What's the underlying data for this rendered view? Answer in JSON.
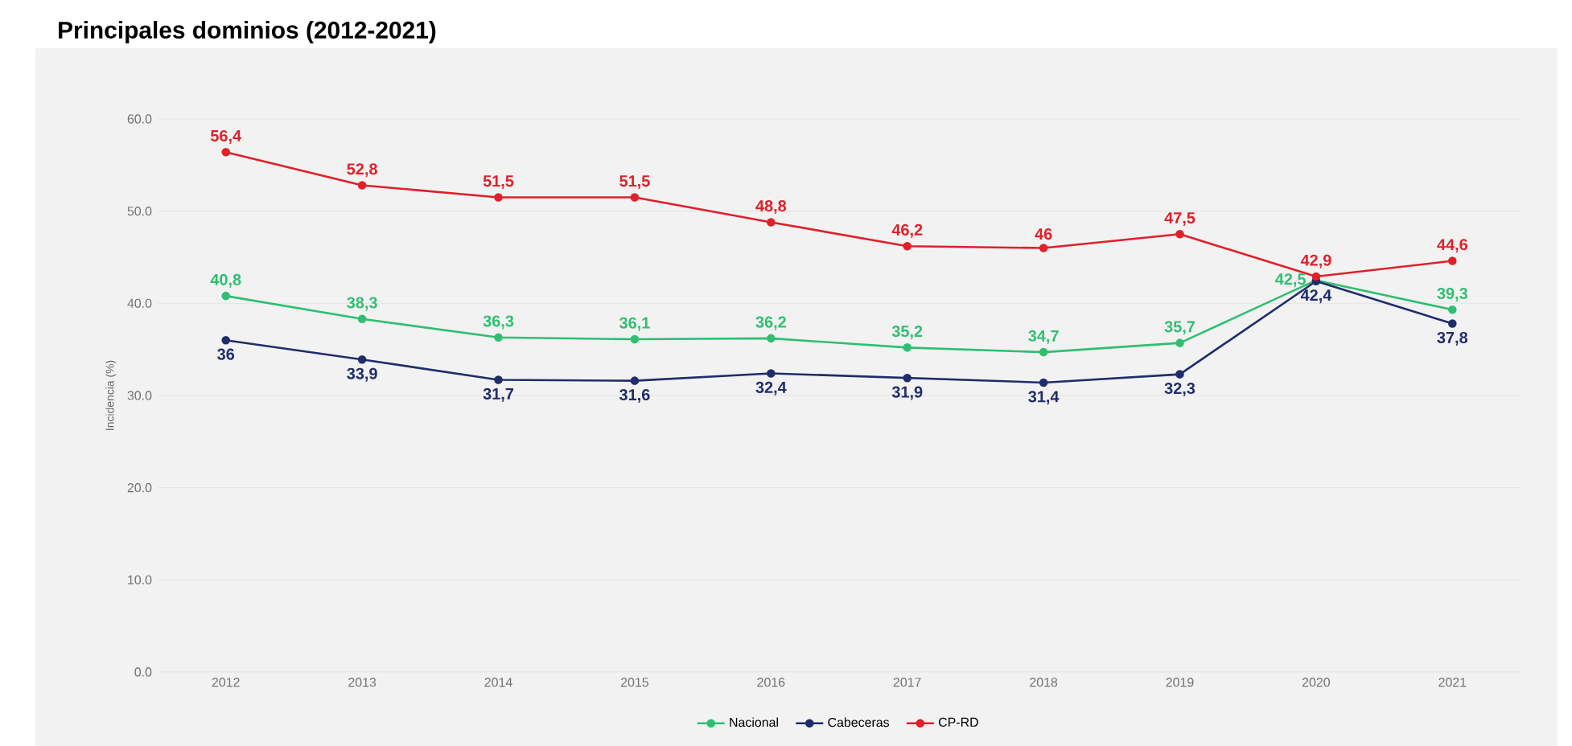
{
  "chart_data": {
    "type": "line",
    "title": "Principales dominios (2012-2021)",
    "ylabel": "Incidencia (%)",
    "categories": [
      "2012",
      "2013",
      "2014",
      "2015",
      "2016",
      "2017",
      "2018",
      "2019",
      "2020",
      "2021"
    ],
    "series": [
      {
        "name": "Nacional",
        "color": "#2fbf71",
        "values": [
          40.8,
          38.3,
          36.3,
          36.1,
          36.2,
          35.2,
          34.7,
          35.7,
          42.5,
          39.3
        ],
        "value_labels": [
          "40,8",
          "38,3",
          "36,3",
          "36,1",
          "36,2",
          "35,2",
          "34,7",
          "35,7",
          "42,5",
          "39,3"
        ]
      },
      {
        "name": "Cabeceras",
        "color": "#1f2d6b",
        "values": [
          36,
          33.9,
          31.7,
          31.6,
          32.4,
          31.9,
          31.4,
          32.3,
          42.4,
          37.8
        ],
        "value_labels": [
          "36",
          "33,9",
          "31,7",
          "31,6",
          "32,4",
          "31,9",
          "31,4",
          "32,3",
          "42,4",
          "37,8"
        ]
      },
      {
        "name": "CP-RD",
        "color": "#e0202a",
        "values": [
          56.4,
          52.8,
          51.5,
          51.5,
          48.8,
          46.2,
          46,
          47.5,
          42.9,
          44.6
        ],
        "value_labels": [
          "56,4",
          "52,8",
          "51,5",
          "51,5",
          "48,8",
          "46,2",
          "46",
          "47,5",
          "42,9",
          "44,6"
        ]
      }
    ],
    "ylim": [
      0,
      60
    ],
    "yticks": [
      {
        "value": 0,
        "label": "0.0"
      },
      {
        "value": 10,
        "label": "10.0"
      },
      {
        "value": 20,
        "label": "20.0"
      },
      {
        "value": 30,
        "label": "30.0"
      },
      {
        "value": 40,
        "label": "40.0"
      },
      {
        "value": 50,
        "label": "50.0"
      },
      {
        "value": 60,
        "label": "60.0"
      }
    ],
    "grid": "y",
    "legend": "bottom",
    "marker": "circle",
    "line_style": "solid"
  }
}
